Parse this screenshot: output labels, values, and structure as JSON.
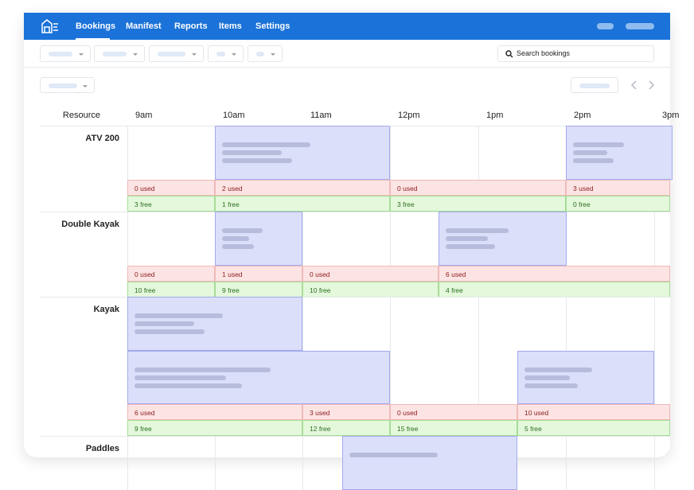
{
  "nav": {
    "items": [
      "Bookings",
      "Manifest",
      "Reports",
      "Items",
      "Settings"
    ]
  },
  "search": {
    "placeholder": "Search bookings"
  },
  "schedule": {
    "header": {
      "resource": "Resource",
      "times": [
        "9am",
        "10am",
        "11am",
        "12pm",
        "1pm",
        "2pm",
        "3pm"
      ]
    },
    "resources": [
      {
        "name": "ATV 200",
        "used": [
          "0 used",
          "2 used",
          "0 used",
          "3 used"
        ],
        "free": [
          "3 free",
          "1 free",
          "3 free",
          "0 free"
        ]
      },
      {
        "name": "Double Kayak",
        "used": [
          "0 used",
          "1 used",
          "0 used",
          "6 used"
        ],
        "free": [
          "10 free",
          "9 free",
          "10 free",
          "4 free"
        ]
      },
      {
        "name": "Kayak",
        "used": [
          "6 used",
          "3 used",
          "0 used",
          "10 used"
        ],
        "free": [
          "9 free",
          "12 free",
          "15 free",
          "5 free"
        ]
      },
      {
        "name": "Paddles"
      }
    ]
  }
}
